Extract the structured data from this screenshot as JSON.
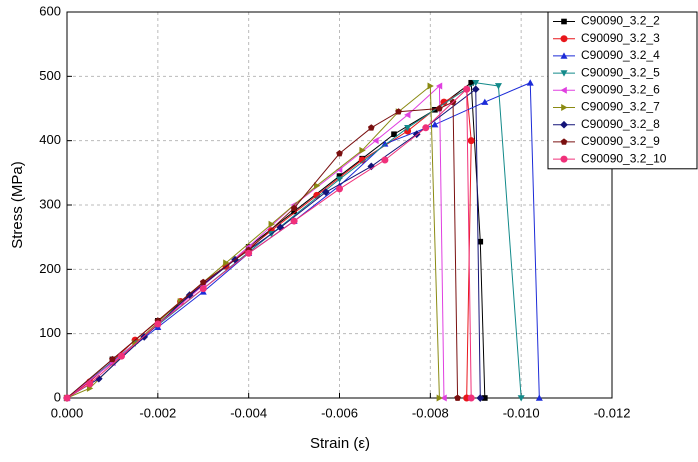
{
  "chart_data": {
    "type": "line",
    "x_label": "Strain (ε)",
    "y_label": "Stress (MPa)",
    "xlim": [
      0,
      -0.012
    ],
    "ylim": [
      0,
      600
    ],
    "xticks": [
      {
        "value": 0,
        "label": "0.000"
      },
      {
        "value": -0.002,
        "label": "-0.002"
      },
      {
        "value": -0.004,
        "label": "-0.004"
      },
      {
        "value": -0.006,
        "label": "-0.006"
      },
      {
        "value": -0.008,
        "label": "-0.008"
      },
      {
        "value": -0.01,
        "label": "-0.010"
      },
      {
        "value": -0.012,
        "label": "-0.012"
      }
    ],
    "yticks": [
      0,
      100,
      200,
      300,
      400,
      500,
      600
    ],
    "grid": true,
    "legend": "upper right",
    "series": [
      {
        "name": "C90090_3.2_2",
        "color": "#000000",
        "marker": "square",
        "x": [
          0,
          -0.001,
          -0.002,
          -0.003,
          -0.004,
          -0.005,
          -0.006,
          -0.0065,
          -0.0072,
          -0.0081,
          -0.0089,
          -0.0091,
          -0.0092
        ],
        "values": [
          0,
          60,
          120,
          175,
          235,
          290,
          345,
          372,
          410,
          448,
          490,
          243,
          0
        ]
      },
      {
        "name": "C90090_3.2_3",
        "color": "#e8161b",
        "marker": "circle",
        "x": [
          0,
          -0.0005,
          -0.0015,
          -0.0025,
          -0.0035,
          -0.0045,
          -0.0055,
          -0.0065,
          -0.0075,
          -0.0083,
          -0.0088,
          -0.0089,
          -0.0088
        ],
        "values": [
          0,
          25,
          90,
          150,
          205,
          260,
          315,
          370,
          415,
          460,
          480,
          400,
          0
        ]
      },
      {
        "name": "C90090_3.2_4",
        "color": "#1c2bd8",
        "marker": "triangle-up",
        "x": [
          0,
          -0.001,
          -0.002,
          -0.003,
          -0.004,
          -0.005,
          -0.006,
          -0.007,
          -0.0081,
          -0.0092,
          -0.0102,
          -0.0104
        ],
        "values": [
          0,
          55,
          110,
          165,
          225,
          275,
          330,
          395,
          425,
          460,
          490,
          0
        ]
      },
      {
        "name": "C90090_3.2_5",
        "color": "#138a8a",
        "marker": "triangle-down",
        "x": [
          0,
          -0.0015,
          -0.003,
          -0.0045,
          -0.006,
          -0.0075,
          -0.009,
          -0.0095,
          -0.01
        ],
        "values": [
          0,
          85,
          170,
          255,
          340,
          420,
          490,
          485,
          0
        ]
      },
      {
        "name": "C90090_3.2_6",
        "color": "#e040e0",
        "marker": "triangle-left",
        "x": [
          0,
          -0.001,
          -0.002,
          -0.003,
          -0.004,
          -0.005,
          -0.006,
          -0.0068,
          -0.0075,
          -0.0082,
          -0.0083
        ],
        "values": [
          0,
          55,
          115,
          175,
          235,
          300,
          355,
          400,
          440,
          485,
          0
        ]
      },
      {
        "name": "C90090_3.2_7",
        "color": "#8a8a12",
        "marker": "triangle-right",
        "x": [
          0,
          -0.0005,
          -0.0015,
          -0.0025,
          -0.0035,
          -0.0045,
          -0.0055,
          -0.0065,
          -0.0073,
          -0.008,
          -0.0082
        ],
        "values": [
          0,
          15,
          85,
          150,
          210,
          270,
          330,
          385,
          445,
          485,
          0
        ]
      },
      {
        "name": "C90090_3.2_8",
        "color": "#141478",
        "marker": "diamond",
        "x": [
          0,
          -0.0007,
          -0.0017,
          -0.0027,
          -0.0037,
          -0.0047,
          -0.0057,
          -0.0067,
          -0.0077,
          -0.009,
          -0.0091
        ],
        "values": [
          0,
          30,
          95,
          160,
          215,
          265,
          320,
          360,
          410,
          480,
          0
        ]
      },
      {
        "name": "C90090_3.2_9",
        "color": "#7a1010",
        "marker": "pentagon",
        "x": [
          0,
          -0.001,
          -0.002,
          -0.003,
          -0.004,
          -0.005,
          -0.006,
          -0.0067,
          -0.0073,
          -0.0082,
          -0.0085,
          -0.0086
        ],
        "values": [
          0,
          60,
          120,
          180,
          230,
          295,
          380,
          420,
          445,
          450,
          460,
          0
        ]
      },
      {
        "name": "C90090_3.2_10",
        "color": "#f0307a",
        "marker": "circle",
        "x": [
          0,
          -0.0005,
          -0.0012,
          -0.002,
          -0.003,
          -0.004,
          -0.005,
          -0.006,
          -0.007,
          -0.0079,
          -0.0088,
          -0.0089
        ],
        "values": [
          0,
          22,
          65,
          115,
          170,
          225,
          275,
          325,
          370,
          420,
          480,
          0
        ]
      }
    ]
  }
}
